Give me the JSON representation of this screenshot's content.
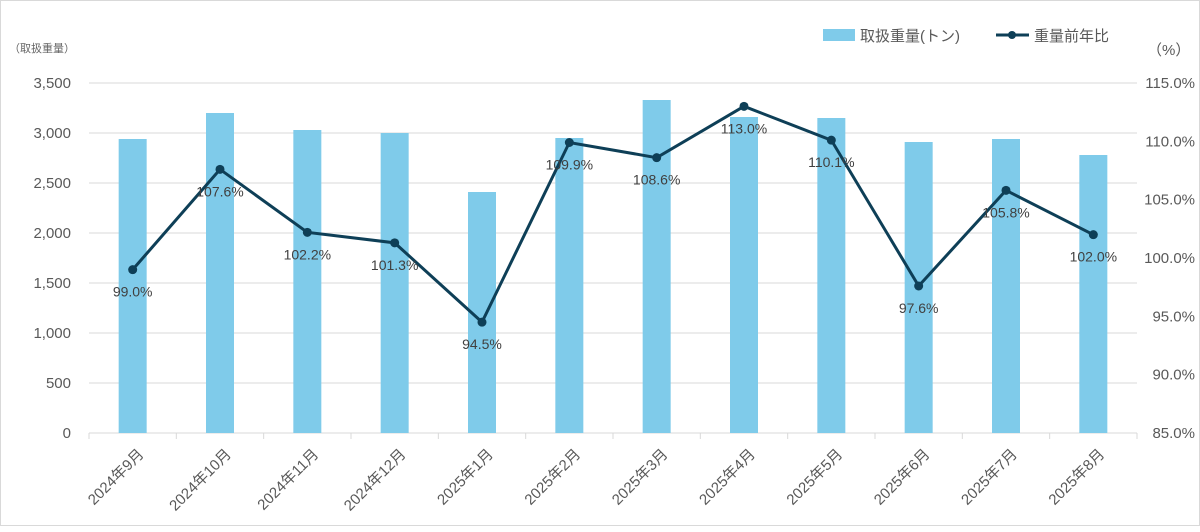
{
  "chart_data": {
    "type": "bar+line",
    "categories": [
      "2024年9月",
      "2024年10月",
      "2024年11月",
      "2024年12月",
      "2025年1月",
      "2025年2月",
      "2025年3月",
      "2025年4月",
      "2025年5月",
      "2025年6月",
      "2025年7月",
      "2025年8月"
    ],
    "series": [
      {
        "name": "取扱重量(トン)",
        "type": "bar",
        "axis": "left",
        "color": "#7fcbea",
        "values": [
          2940,
          3200,
          3030,
          3000,
          2410,
          2950,
          3330,
          3160,
          3150,
          2910,
          2940,
          2780
        ]
      },
      {
        "name": "重量前年比",
        "type": "line",
        "axis": "right",
        "color": "#0e3f57",
        "values": [
          99.0,
          107.6,
          102.2,
          101.3,
          94.5,
          109.9,
          108.6,
          113.0,
          110.1,
          97.6,
          105.8,
          102.0
        ],
        "labels": [
          "99.0%",
          "107.6%",
          "102.2%",
          "101.3%",
          "94.5%",
          "109.9%",
          "108.6%",
          "113.0%",
          "110.1%",
          "97.6%",
          "105.8%",
          "102.0%"
        ]
      }
    ],
    "y_left": {
      "label": "（取扱重量）",
      "range": [
        0,
        3500
      ],
      "ticks": [
        "0",
        "500",
        "1,000",
        "1,500",
        "2,000",
        "2,500",
        "3,000",
        "3,500"
      ]
    },
    "y_right": {
      "label": "（%）",
      "range": [
        85,
        115
      ],
      "ticks": [
        "85.0%",
        "90.0%",
        "95.0%",
        "100.0%",
        "105.0%",
        "110.0%",
        "115.0%"
      ]
    },
    "grid": true,
    "legend": "top-right"
  }
}
